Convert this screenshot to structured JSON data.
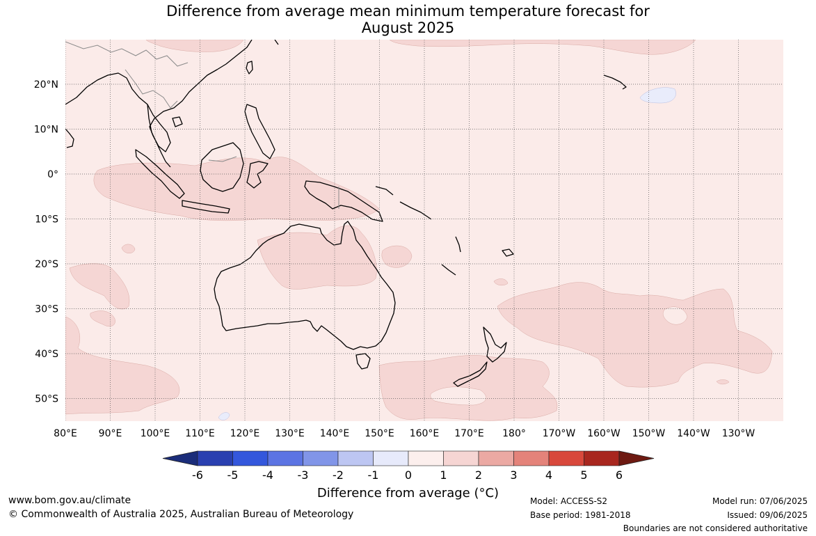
{
  "title": {
    "line1": "Difference from average mean minimum temperature forecast for",
    "line2": "August 2025"
  },
  "map": {
    "longitude_labels": [
      "80°E",
      "90°E",
      "100°E",
      "110°E",
      "120°E",
      "130°E",
      "140°E",
      "150°E",
      "160°E",
      "170°E",
      "180°",
      "170°W",
      "160°W",
      "150°W",
      "140°W",
      "130°W"
    ],
    "latitude_labels": [
      "20°N",
      "10°N",
      "0°",
      "10°S",
      "20°S",
      "30°S",
      "40°S",
      "50°S"
    ],
    "colors": {
      "background_anomaly_0_to_1": "#fbebe9",
      "anomaly_1_to_2": "#f5d6d4",
      "anomaly_minus1_to_0": "#e9ecfb",
      "coastline": "#000000",
      "gridline": "#555555"
    }
  },
  "colorbar": {
    "tick_labels": [
      "-6",
      "-5",
      "-4",
      "-3",
      "-2",
      "-1",
      "0",
      "1",
      "2",
      "3",
      "4",
      "5",
      "6"
    ],
    "colors": [
      "#1b2d7a",
      "#2a40b0",
      "#3457dc",
      "#5c74e3",
      "#8195e8",
      "#bdc6f2",
      "#e7eafb",
      "#fcefed",
      "#f6d5d3",
      "#eba9a3",
      "#e4837a",
      "#d8483c",
      "#a8271f",
      "#6e1a12"
    ],
    "label": "Difference from average (°C)"
  },
  "footer": {
    "website": "www.bom.gov.au/climate",
    "copyright": "© Commonwealth of Australia 2025, Australian Bureau of Meteorology",
    "model": "Model: ACCESS-S2",
    "base_period": "Base period: 1981-2018",
    "model_run": "Model run: 07/06/2025",
    "issued": "Issued: 09/06/2025",
    "boundaries_note": "Boundaries are not considered authoritative"
  }
}
